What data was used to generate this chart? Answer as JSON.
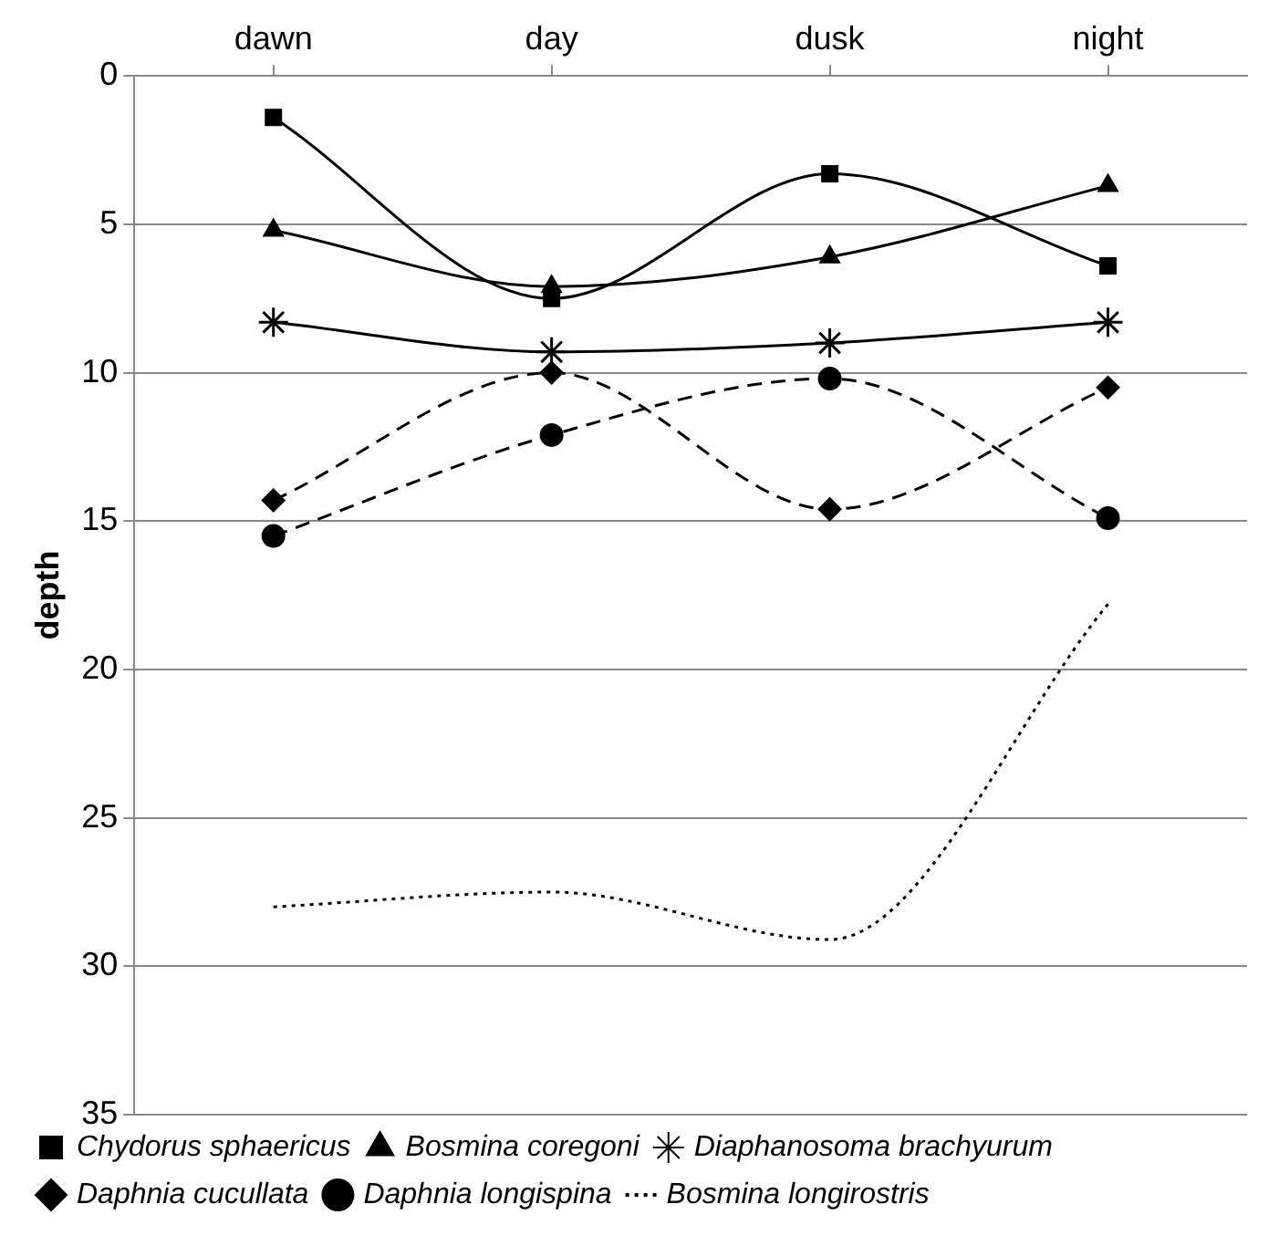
{
  "chart_data": {
    "type": "line",
    "ylabel": "depth",
    "categories": [
      "dawn",
      "day",
      "dusk",
      "night"
    ],
    "series": [
      {
        "name": "Chydorus sphaericus",
        "color": "#000000",
        "marker": "square",
        "line_style": "solid",
        "values": [
          1.4,
          7.5,
          3.3,
          6.4
        ]
      },
      {
        "name": "Bosmina coregoni",
        "color": "#000000",
        "marker": "triangle",
        "line_style": "solid",
        "values": [
          5.2,
          7.1,
          6.1,
          3.7
        ]
      },
      {
        "name": "Diaphanosoma brachyurum",
        "color": "#000000",
        "marker": "cross",
        "line_style": "solid",
        "values": [
          8.3,
          9.3,
          9.0,
          8.3
        ]
      },
      {
        "name": "Daphnia cucullata",
        "color": "#000000",
        "marker": "diamond",
        "line_style": "dashed",
        "values": [
          14.3,
          10.0,
          14.6,
          10.5
        ]
      },
      {
        "name": "Daphnia longispina",
        "color": "#000000",
        "marker": "circle",
        "line_style": "dashed",
        "values": [
          15.5,
          12.1,
          10.2,
          14.9
        ]
      },
      {
        "name": "Bosmina longirostris",
        "color": "#000000",
        "marker": "none",
        "line_style": "dotted",
        "values": [
          28.0,
          27.5,
          29.1,
          17.8
        ]
      }
    ],
    "ylim": [
      35,
      0
    ],
    "yticks": [
      0,
      5,
      10,
      15,
      20,
      25,
      30,
      35
    ],
    "grid": "y",
    "legend": "bottom"
  }
}
